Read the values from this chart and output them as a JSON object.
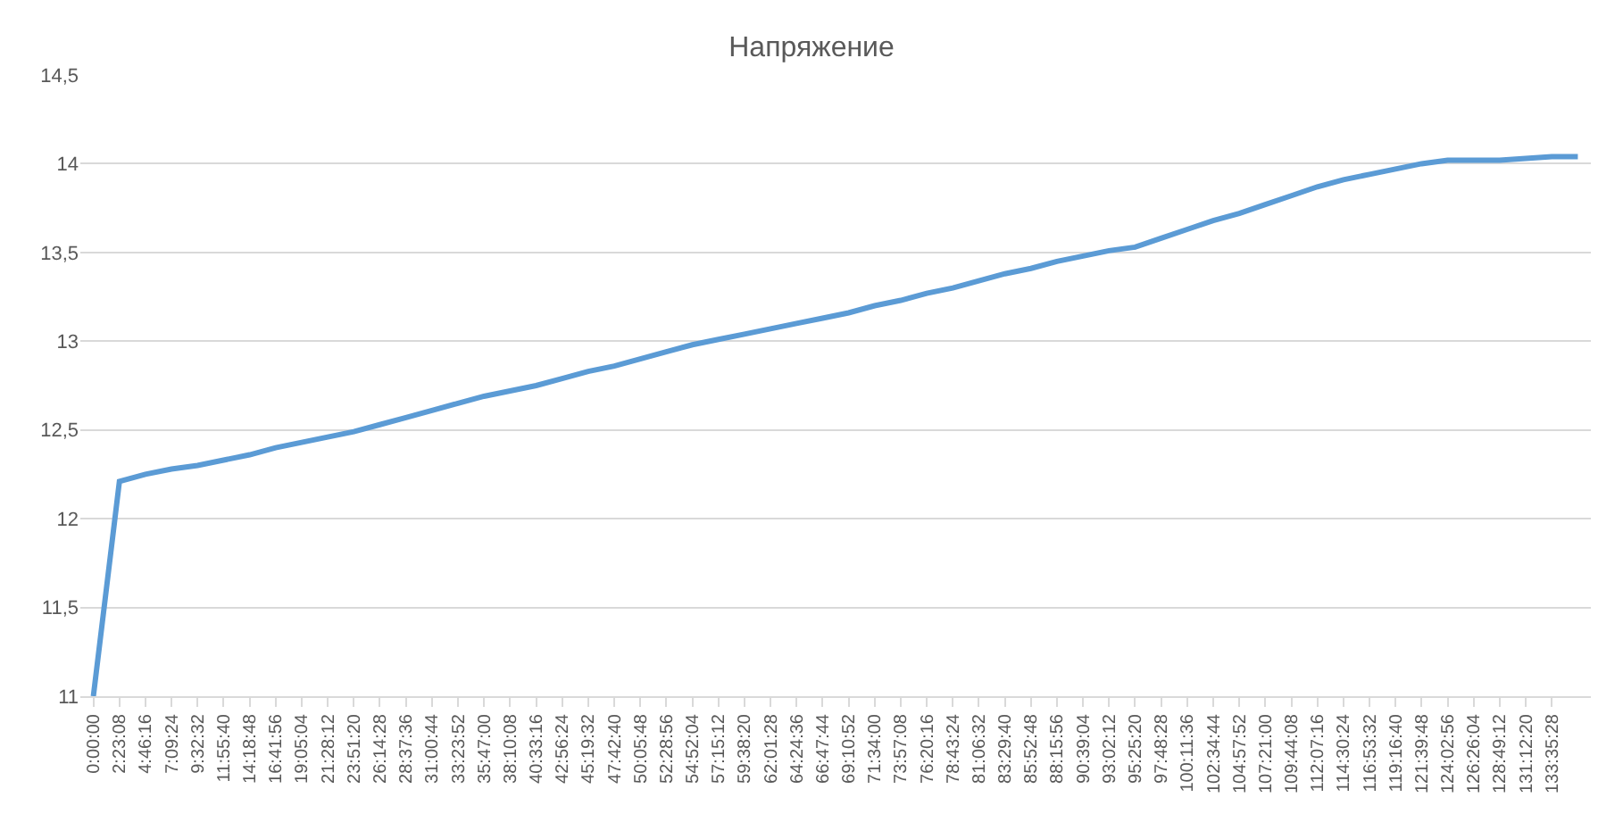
{
  "chart_data": {
    "type": "line",
    "title": "Напряжение",
    "categories": [
      "0:00:00",
      "2:23:08",
      "4:46:16",
      "7:09:24",
      "9:32:32",
      "11:55:40",
      "14:18:48",
      "16:41:56",
      "19:05:04",
      "21:28:12",
      "23:51:20",
      "26:14:28",
      "28:37:36",
      "31:00:44",
      "33:23:52",
      "35:47:00",
      "38:10:08",
      "40:33:16",
      "42:56:24",
      "45:19:32",
      "47:42:40",
      "50:05:48",
      "52:28:56",
      "54:52:04",
      "57:15:12",
      "59:38:20",
      "62:01:28",
      "64:24:36",
      "66:47:44",
      "69:10:52",
      "71:34:00",
      "73:57:08",
      "76:20:16",
      "78:43:24",
      "81:06:32",
      "83:29:40",
      "85:52:48",
      "88:15:56",
      "90:39:04",
      "93:02:12",
      "95:25:20",
      "97:48:28",
      "100:11:36",
      "102:34:44",
      "104:57:52",
      "107:21:00",
      "109:44:08",
      "112:07:16",
      "114:30:24",
      "116:53:32",
      "119:16:40",
      "121:39:48",
      "124:02:56",
      "126:26:04",
      "128:49:12",
      "131:12:20",
      "133:35:28",
      null
    ],
    "series": [
      {
        "color": "#5b9bd5",
        "values": [
          11,
          12.21,
          12.25,
          12.28,
          12.3,
          12.33,
          12.36,
          12.4,
          12.43,
          12.46,
          12.49,
          12.53,
          12.57,
          12.61,
          12.65,
          12.69,
          12.72,
          12.75,
          12.79,
          12.83,
          12.86,
          12.9,
          12.94,
          12.98,
          13.01,
          13.04,
          13.07,
          13.1,
          13.13,
          13.16,
          13.2,
          13.23,
          13.27,
          13.3,
          13.34,
          13.38,
          13.41,
          13.45,
          13.48,
          13.51,
          13.53,
          13.58,
          13.63,
          13.68,
          13.72,
          13.77,
          13.82,
          13.87,
          13.91,
          13.94,
          13.97,
          14.0,
          14.02,
          14.02,
          14.02,
          14.03,
          14.04,
          14.04
        ]
      }
    ],
    "ylim": [
      11,
      14.5
    ],
    "yticks": [
      11,
      {
        "value": 11.5,
        "label": "11,5"
      },
      12,
      {
        "value": 12.5,
        "label": "12,5"
      },
      13,
      {
        "value": 13.5,
        "label": "13,5"
      },
      14,
      {
        "value": 14.5,
        "label": "14,5"
      }
    ],
    "grid": "y",
    "marker": "none",
    "line_style": "solid"
  }
}
